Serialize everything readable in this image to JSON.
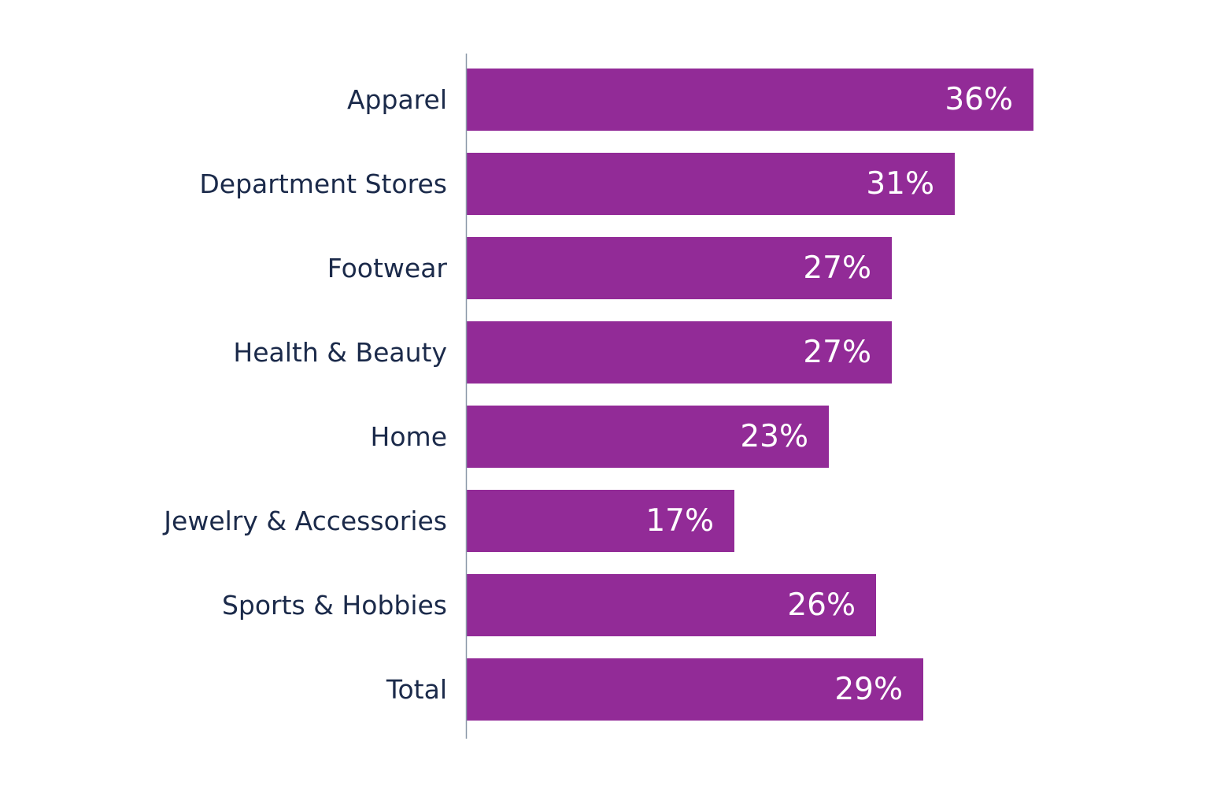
{
  "chart_data": {
    "type": "bar",
    "orientation": "horizontal",
    "categories": [
      "Apparel",
      "Department Stores",
      "Footwear",
      "Health & Beauty",
      "Home",
      "Jewelry & Accessories",
      "Sports & Hobbies",
      "Total"
    ],
    "values": [
      36,
      31,
      27,
      27,
      23,
      17,
      26,
      29
    ],
    "data_labels": [
      "36%",
      "31%",
      "27%",
      "27%",
      "23%",
      "17%",
      "26%",
      "29%"
    ],
    "title": "",
    "xlabel": "",
    "ylabel": "",
    "xlim": [
      0,
      45
    ],
    "grid": false,
    "legend": "none",
    "colors": {
      "bar": "#922b97",
      "category_text": "#1b2a4a",
      "value_text": "#ffffff",
      "axis": "#8a98a8"
    }
  }
}
